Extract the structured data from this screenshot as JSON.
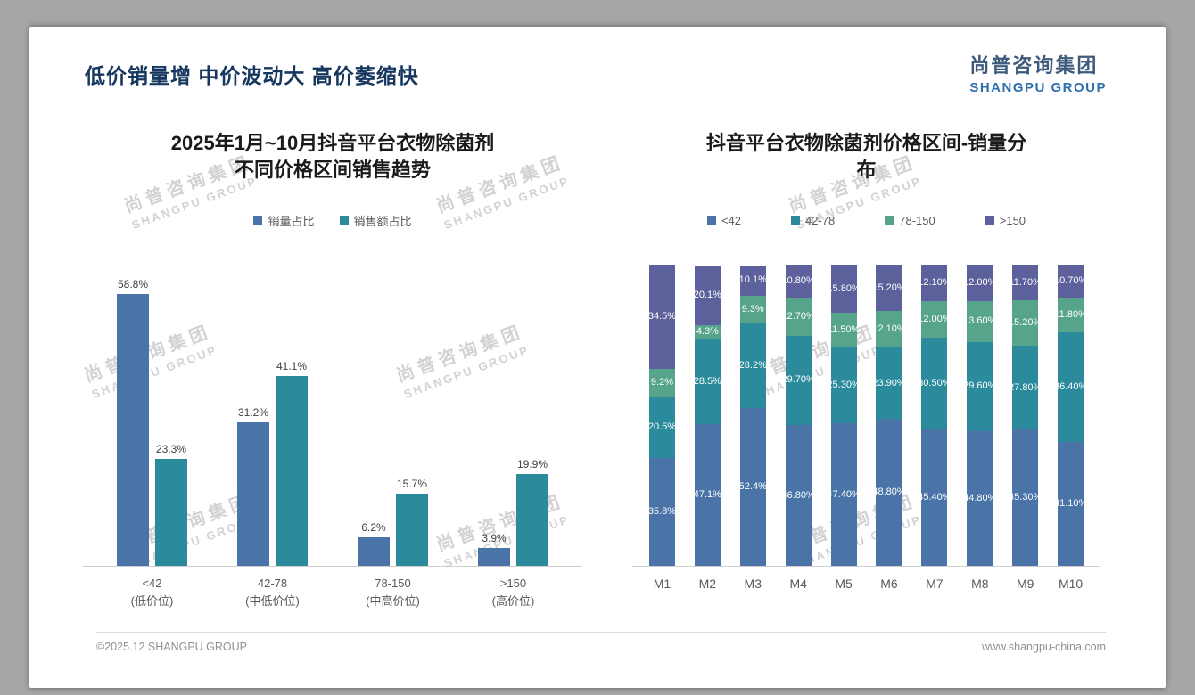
{
  "page": {
    "header_title": "低价销量增 中价波动大 高价萎缩快",
    "logo": {
      "cn": "尚普咨询集团",
      "en": "SHANGPU GROUP"
    },
    "watermark": {
      "cn": "尚普咨询集团",
      "en": "SHANGPU GROUP"
    },
    "footer": {
      "left": "©2025.12 SHANGPU GROUP",
      "right": "www.shangpu-china.com"
    }
  },
  "colors": {
    "header_navy": "#17375e",
    "logo_blue": "#2e6fae",
    "series_blue": "#4a74a8",
    "series_teal": "#2b8a9c",
    "series_green": "#57a48d",
    "series_purple": "#5c619c"
  },
  "chart_data": [
    {
      "type": "bar",
      "title": "2025年1月~10月抖音平台衣物除菌剂\n不同价格区间销售趋势",
      "categories": [
        "<42\n(低价位)",
        "42-78\n(中低价位)",
        "78-150\n(中高价位)",
        ">150\n(高价位)"
      ],
      "series": [
        {
          "name": "销量占比",
          "color": "#4a74a8",
          "values": [
            58.8,
            31.2,
            6.2,
            3.9
          ],
          "labels": [
            "58.8%",
            "31.2%",
            "6.2%",
            "3.9%"
          ]
        },
        {
          "name": "销售额占比",
          "color": "#2b8a9c",
          "values": [
            23.3,
            41.1,
            15.7,
            19.9
          ],
          "labels": [
            "23.3%",
            "41.1%",
            "15.7%",
            "19.9%"
          ]
        }
      ],
      "ylim": [
        0,
        65
      ],
      "grid": false,
      "legend_position": "top",
      "value_label_position": "above-bar"
    },
    {
      "type": "bar",
      "stacked": true,
      "title": "抖音平台衣物除菌剂价格区间-销量分\n布",
      "categories": [
        "M1",
        "M2",
        "M3",
        "M4",
        "M5",
        "M6",
        "M7",
        "M8",
        "M9",
        "M10"
      ],
      "series": [
        {
          "name": "<42",
          "color": "#4a74a8",
          "values": [
            35.8,
            47.1,
            52.4,
            46.8,
            47.4,
            48.8,
            45.4,
            44.8,
            45.3,
            41.1
          ],
          "labels": [
            "35.8%",
            "47.1%",
            "52.4%",
            "46.80%",
            "47.40%",
            "48.80%",
            "45.40%",
            "44.80%",
            "45.30%",
            "41.10%"
          ]
        },
        {
          "name": "42-78",
          "color": "#2b8a9c",
          "values": [
            20.5,
            28.5,
            28.2,
            29.7,
            25.3,
            23.9,
            30.5,
            29.6,
            27.8,
            36.4
          ],
          "labels": [
            "20.5%",
            "28.5%",
            "28.2%",
            "29.70%",
            "25.30%",
            "23.90%",
            "30.50%",
            "29.60%",
            "27.80%",
            "36.40%"
          ]
        },
        {
          "name": "78-150",
          "color": "#57a48d",
          "values": [
            9.2,
            4.3,
            9.3,
            12.7,
            11.5,
            12.1,
            12.0,
            13.6,
            15.2,
            11.8
          ],
          "labels": [
            "9.2%",
            "4.3%",
            "9.3%",
            "12.70%",
            "11.50%",
            "12.10%",
            "12.00%",
            "13.60%",
            "15.20%",
            "11.80%"
          ]
        },
        {
          "name": ">150",
          "color": "#5c619c",
          "values": [
            34.5,
            20.1,
            10.1,
            10.8,
            15.8,
            15.2,
            12.1,
            12.0,
            11.7,
            10.7
          ],
          "labels": [
            "34.5%",
            "20.1%",
            "10.1%",
            "10.80%",
            "15.80%",
            "15.20%",
            "12.10%",
            "12.00%",
            "11.70%",
            "10.70%"
          ]
        }
      ],
      "ylim": [
        0,
        100
      ],
      "grid": false,
      "legend_position": "top",
      "value_label_position": "inside-segment"
    }
  ]
}
